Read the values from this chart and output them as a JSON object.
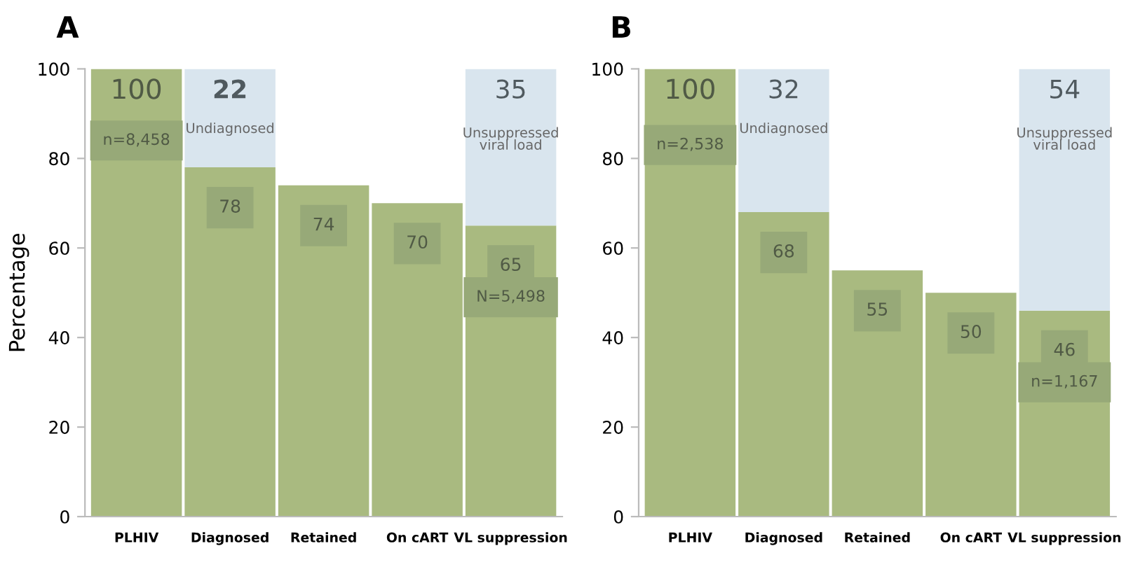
{
  "chart_data": [
    {
      "type": "bar",
      "title": "A",
      "ylabel": "Percentage",
      "stacked": true,
      "data_labels": true,
      "grid": false,
      "categories": [
        "PLHIV",
        "Diagnosed",
        "Retained",
        "On cART",
        "VL suppression"
      ],
      "ylim": [
        0,
        100
      ],
      "yticks": [
        0,
        20,
        40,
        60,
        80,
        100
      ],
      "series": [
        {
          "color": "#a9ba80",
          "values": [
            100,
            78,
            74,
            70,
            65
          ]
        },
        {
          "color": "#d9e5ee",
          "values": [
            null,
            22,
            null,
            null,
            35
          ]
        }
      ],
      "annotations": [
        "n=8,458",
        "Undiagnosed",
        "Unsuppressed viral load",
        "N=5,498"
      ]
    },
    {
      "type": "bar",
      "title": "B",
      "stacked": true,
      "data_labels": true,
      "grid": false,
      "categories": [
        "PLHIV",
        "Diagnosed",
        "Retained",
        "On cART",
        "VL suppression"
      ],
      "ylim": [
        0,
        100
      ],
      "yticks": [
        0,
        20,
        40,
        60,
        80,
        100
      ],
      "series": [
        {
          "color": "#a9ba80",
          "values": [
            100,
            68,
            55,
            50,
            46
          ]
        },
        {
          "color": "#d9e5ee",
          "values": [
            null,
            32,
            null,
            null,
            54
          ]
        }
      ],
      "annotations": [
        "n=2,538",
        "Undiagnosed",
        "Unsuppressed viral load",
        "n=1,167"
      ]
    }
  ]
}
